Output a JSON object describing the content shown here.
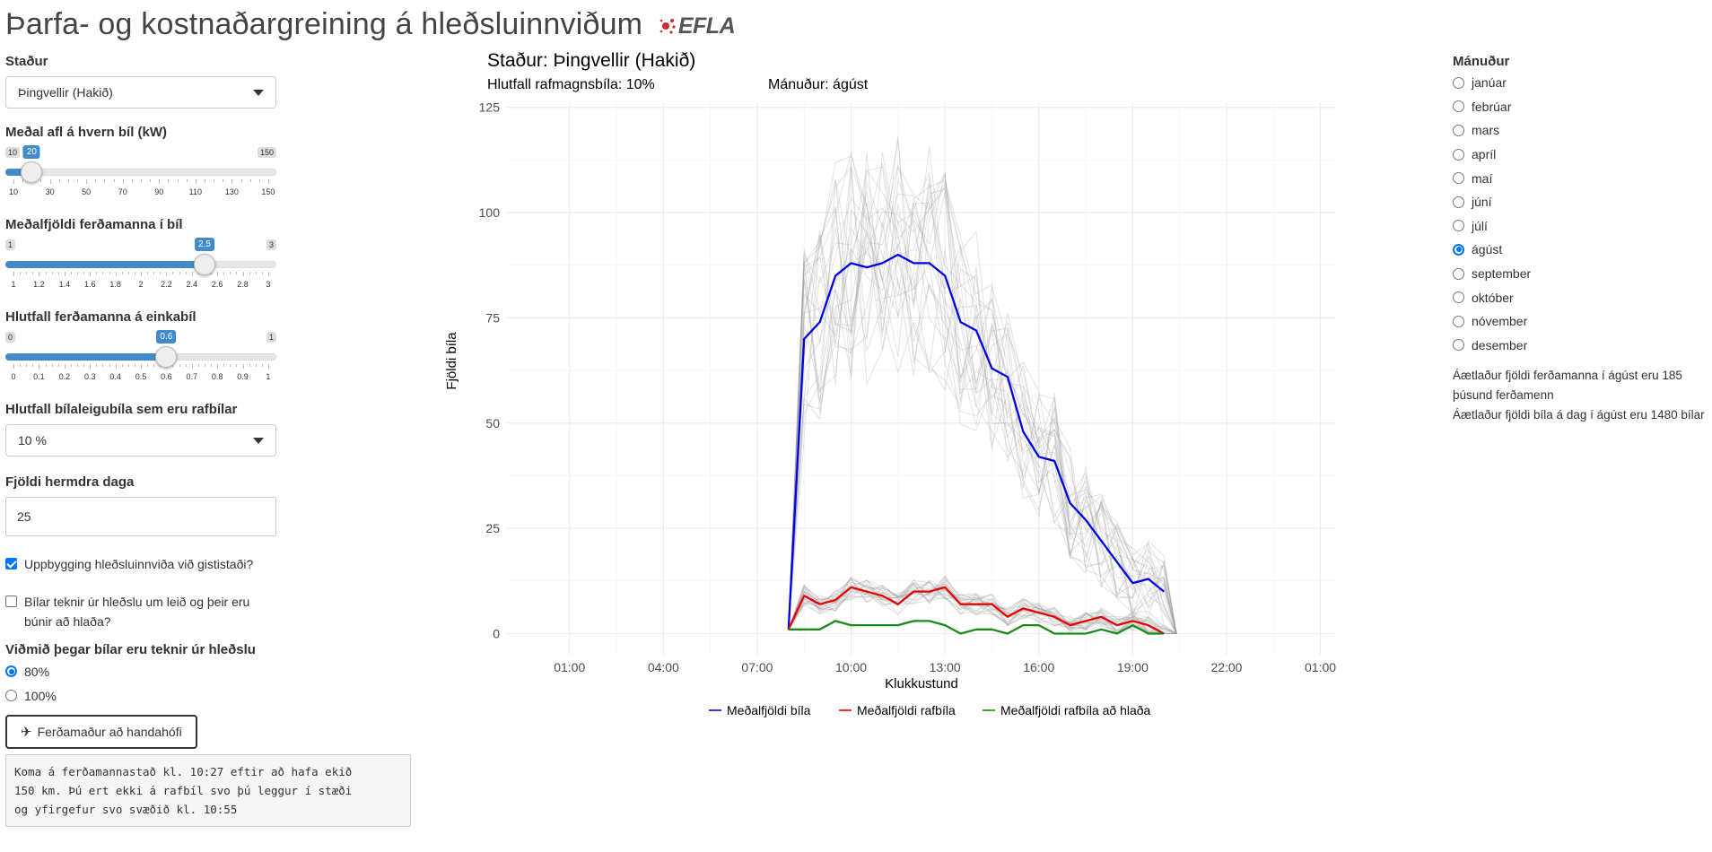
{
  "header": {
    "title": "Þarfa- og kostnaðargreining á hleðsluinnviðum",
    "logo_text": "EFLA"
  },
  "location": {
    "label": "Staður",
    "value": "Þingvellir (Hakið)"
  },
  "power_slider": {
    "label": "Meðal afl á hvern bíl (kW)",
    "min": 10,
    "max": 150,
    "value": 20,
    "min_label": "10",
    "max_label": "150",
    "value_label": "20",
    "ticks": [
      "10",
      "30",
      "50",
      "70",
      "90",
      "110",
      "130",
      "150"
    ]
  },
  "tourists_per_car_slider": {
    "label": "Meðalfjöldi ferðamanna í bíl",
    "min": 1,
    "max": 3,
    "value": 2.5,
    "min_label": "1",
    "max_label": "3",
    "value_label": "2.5",
    "ticks": [
      "1",
      "1.2",
      "1.4",
      "1.6",
      "1.8",
      "2",
      "2.2",
      "2.4",
      "2.6",
      "2.8",
      "3"
    ]
  },
  "private_car_slider": {
    "label": "Hlutfall ferðamanna á einkabíl",
    "min": 0,
    "max": 1,
    "value": 0.6,
    "min_label": "0",
    "max_label": "1",
    "value_label": "0.6",
    "ticks": [
      "0",
      "0.1",
      "0.2",
      "0.3",
      "0.4",
      "0.5",
      "0.6",
      "0.7",
      "0.8",
      "0.9",
      "1"
    ]
  },
  "ev_share": {
    "label": "Hlutfall bílaleigubíla sem eru rafbílar",
    "value": "10 %"
  },
  "sim_days": {
    "label": "Fjöldi hermdra daga",
    "value": "25"
  },
  "checkbox_lodging": {
    "label": "Uppbygging hleðsluinnviða við gististaði?",
    "checked": true
  },
  "checkbox_unplug": {
    "label": "Bílar teknir úr hleðslu um leið og þeir eru búnir að hlaða?",
    "checked": false
  },
  "unplug_threshold": {
    "label": "Viðmið þegar bílar eru teknir úr hleðslu",
    "options": [
      "80%",
      "100%"
    ],
    "selected": "80%"
  },
  "random_button": {
    "label": "Ferðamaður að handahófi"
  },
  "output_text": "Koma á ferðamannastað kl. 10:27 eftir að hafa ekið\n150 km. Þú ert ekki á rafbíl svo þú leggur í stæði\nog yfirgefur svo svæðið kl. 10:55",
  "plot": {
    "title": "Staður: Þingvellir (Hakið)",
    "subtitle_ev": "Hlutfall rafmagnsbíla: 10%",
    "subtitle_month": "Mánuður: ágúst"
  },
  "months": {
    "label": "Mánuður",
    "options": [
      "janúar",
      "febrúar",
      "mars",
      "apríl",
      "maí",
      "júní",
      "júlí",
      "ágúst",
      "september",
      "október",
      "nóvember",
      "desember"
    ],
    "selected": "ágúst"
  },
  "info": {
    "line1": "Áætlaður fjöldi ferðamanna í ágúst eru 185 þúsund ferðamenn",
    "line2": "Áætlaður fjöldi bíla á dag í ágúst eru 1480 bílar"
  },
  "colors": {
    "accent": "#428bca",
    "cars": "#0000e6",
    "ev": "#e60000",
    "ev_charging": "#1a8a1a",
    "sim": "#9a9a9a"
  },
  "chart_data": {
    "type": "line",
    "xlabel": "Klukkustund",
    "ylabel": "Fjöldi bíla",
    "x_unit": "hours",
    "xlim": [
      -1,
      25.5
    ],
    "ylim": [
      -5,
      126
    ],
    "x_ticks": [
      1,
      4,
      7,
      10,
      13,
      16,
      19,
      22,
      25
    ],
    "x_tick_labels": [
      "01:00",
      "04:00",
      "07:00",
      "10:00",
      "13:00",
      "16:00",
      "19:00",
      "22:00",
      "01:00"
    ],
    "y_ticks": [
      0,
      25,
      50,
      75,
      100,
      125
    ],
    "y_tick_labels": [
      "0",
      "25",
      "50",
      "75",
      "100",
      "125"
    ],
    "grid": true,
    "legend_position": "bottom",
    "x": [
      8,
      8.5,
      9,
      9.5,
      10,
      10.5,
      11,
      11.5,
      12,
      12.5,
      13,
      13.5,
      14,
      14.5,
      15,
      15.5,
      16,
      16.5,
      17,
      17.5,
      18,
      18.5,
      19,
      19.5,
      20
    ],
    "series": [
      {
        "name": "Meðalfjöldi bíla",
        "color": "#0000e6",
        "values": [
          1,
          70,
          74,
          85,
          88,
          87,
          88,
          90,
          88,
          88,
          85,
          74,
          72,
          63,
          61,
          48,
          42,
          41,
          31,
          27,
          22,
          17,
          12,
          13,
          10
        ]
      },
      {
        "name": "Meðalfjöldi rafbíla",
        "color": "#e60000",
        "values": [
          1,
          9,
          7,
          8,
          11,
          10,
          9,
          7,
          10,
          10,
          11,
          7,
          7,
          7,
          4,
          6,
          5,
          4,
          2,
          3,
          4,
          2,
          3,
          2,
          0
        ]
      },
      {
        "name": "Meðalfjöldi rafbíla að hlaða",
        "color": "#1a8a1a",
        "values": [
          1,
          1,
          1,
          3,
          2,
          2,
          2,
          2,
          3,
          3,
          2,
          0,
          1,
          1,
          0,
          2,
          2,
          0,
          0,
          0,
          1,
          0,
          2,
          0,
          0
        ]
      }
    ],
    "simulated_runs": 25
  }
}
